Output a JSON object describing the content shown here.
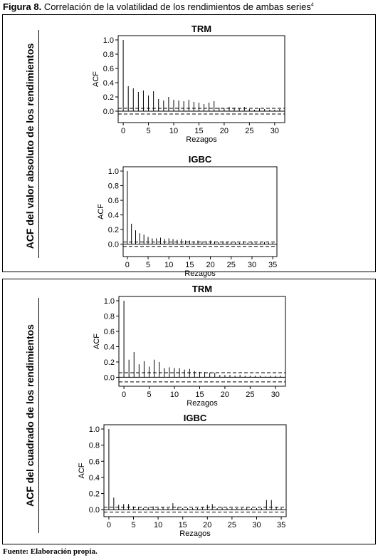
{
  "figure": {
    "label": "Figura 8.",
    "title": "Correlación de la volatilidad de los rendimientos de ambas series",
    "footnote": "4"
  },
  "panels": [
    {
      "side_label": "ACF del valor absoluto de los rendimientos"
    },
    {
      "side_label": "ACF del cuadrado de los rendimientos"
    }
  ],
  "source": "Fuente: Elaboración propia.",
  "chart_data": [
    {
      "type": "bar",
      "title": "TRM",
      "xlabel": "Rezagos",
      "ylabel": "ACF",
      "xlim": [
        -1,
        32
      ],
      "ylim": [
        -0.12,
        1.05
      ],
      "xticks": [
        0,
        5,
        10,
        15,
        20,
        25,
        30
      ],
      "yticks": [
        0.0,
        0.2,
        0.4,
        0.6,
        0.8,
        1.0
      ],
      "lags": [
        0,
        1,
        2,
        3,
        4,
        5,
        6,
        7,
        8,
        9,
        10,
        11,
        12,
        13,
        14,
        15,
        16,
        17,
        18,
        19,
        20,
        21,
        22,
        23,
        24,
        25,
        26,
        27,
        28,
        29,
        30,
        31
      ],
      "values": [
        1.0,
        0.35,
        0.32,
        0.27,
        0.29,
        0.22,
        0.28,
        0.17,
        0.15,
        0.2,
        0.16,
        0.15,
        0.14,
        0.16,
        0.13,
        0.12,
        0.1,
        0.12,
        0.14,
        0.05,
        0.04,
        0.06,
        0.05,
        0.04,
        0.06,
        0.03,
        0.02,
        0.04,
        0.03,
        0.02,
        0.02,
        0.03
      ],
      "conf_band": 0.04
    },
    {
      "type": "bar",
      "title": "IGBC",
      "xlabel": "Rezagos",
      "ylabel": "ACF",
      "xlim": [
        -1,
        36
      ],
      "ylim": [
        -0.12,
        1.05
      ],
      "xticks": [
        0,
        5,
        10,
        15,
        20,
        25,
        30,
        35
      ],
      "yticks": [
        0.0,
        0.2,
        0.4,
        0.6,
        0.8,
        1.0
      ],
      "lags": [
        0,
        1,
        2,
        3,
        4,
        5,
        6,
        7,
        8,
        9,
        10,
        11,
        12,
        13,
        14,
        15,
        16,
        17,
        18,
        19,
        20,
        21,
        22,
        23,
        24,
        25,
        26,
        27,
        28,
        29,
        30,
        31,
        32,
        33,
        34,
        35
      ],
      "values": [
        1.0,
        0.28,
        0.19,
        0.15,
        0.13,
        0.1,
        0.08,
        0.08,
        0.09,
        0.07,
        0.08,
        0.07,
        0.06,
        0.07,
        0.05,
        0.05,
        0.04,
        0.05,
        0.04,
        0.04,
        0.05,
        0.04,
        0.03,
        0.04,
        0.03,
        0.03,
        0.03,
        0.02,
        0.04,
        0.02,
        0.03,
        0.02,
        0.02,
        0.03,
        0.02,
        0.02
      ],
      "conf_band": 0.03
    },
    {
      "type": "bar",
      "title": "TRM",
      "xlabel": "Rezagos",
      "ylabel": "ACF",
      "xlim": [
        -1,
        32
      ],
      "ylim": [
        -0.08,
        1.05
      ],
      "xticks": [
        0,
        5,
        10,
        15,
        20,
        25,
        30
      ],
      "yticks": [
        0.0,
        0.2,
        0.4,
        0.6,
        0.8,
        1.0
      ],
      "lags": [
        0,
        1,
        2,
        3,
        4,
        5,
        6,
        7,
        8,
        9,
        10,
        11,
        12,
        13,
        14,
        15,
        16,
        17,
        18,
        19,
        20,
        21,
        22,
        23,
        24,
        25,
        26,
        27,
        28,
        29,
        30,
        31
      ],
      "values": [
        1.0,
        0.23,
        0.33,
        0.17,
        0.21,
        0.14,
        0.23,
        0.2,
        0.12,
        0.13,
        0.12,
        0.12,
        0.1,
        0.11,
        0.08,
        0.07,
        0.07,
        0.06,
        0.06,
        0.03,
        0.03,
        0.03,
        0.02,
        0.03,
        0.02,
        0.02,
        0.02,
        0.02,
        0.01,
        0.02,
        0.02,
        0.02
      ],
      "conf_band": 0.06
    },
    {
      "type": "bar",
      "title": "IGBC",
      "xlabel": "Rezagos",
      "ylabel": "ACF",
      "xlim": [
        -1,
        36
      ],
      "ylim": [
        -0.06,
        1.05
      ],
      "xticks": [
        0,
        5,
        10,
        15,
        20,
        25,
        30,
        35
      ],
      "yticks": [
        0.0,
        0.2,
        0.4,
        0.6,
        0.8,
        1.0
      ],
      "lags": [
        0,
        1,
        2,
        3,
        4,
        5,
        6,
        7,
        8,
        9,
        10,
        11,
        12,
        13,
        14,
        15,
        16,
        17,
        18,
        19,
        20,
        21,
        22,
        23,
        24,
        25,
        26,
        27,
        28,
        29,
        30,
        31,
        32,
        33,
        34,
        35
      ],
      "values": [
        1.0,
        0.15,
        0.06,
        0.07,
        0.07,
        0.04,
        0.03,
        0.02,
        0.03,
        0.04,
        0.02,
        0.03,
        0.02,
        0.08,
        0.03,
        0.02,
        0.02,
        0.02,
        0.02,
        0.03,
        0.06,
        0.07,
        0.02,
        0.03,
        0.02,
        0.02,
        0.02,
        0.02,
        0.03,
        0.02,
        0.02,
        0.02,
        0.12,
        0.12,
        0.03,
        0.02
      ],
      "conf_band": 0.03
    }
  ]
}
